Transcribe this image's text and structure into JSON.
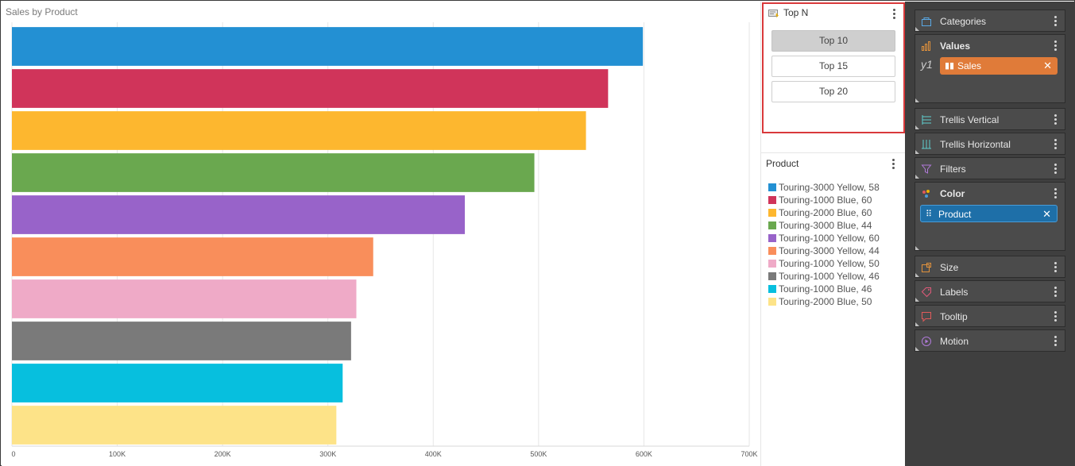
{
  "chart": {
    "title": "Sales by Product"
  },
  "chart_data": {
    "type": "bar",
    "orientation": "horizontal",
    "title": "Sales by Product",
    "xlabel": "",
    "ylabel": "",
    "xlim": [
      0,
      700000
    ],
    "x_ticks": [
      "0",
      "100K",
      "200K",
      "300K",
      "400K",
      "500K",
      "600K",
      "700K"
    ],
    "grid": true,
    "categories": [
      "Touring-3000 Yellow, 58",
      "Touring-1000 Blue, 60",
      "Touring-2000 Blue, 60",
      "Touring-3000 Blue, 44",
      "Touring-1000 Yellow, 60",
      "Touring-3000 Yellow, 44",
      "Touring-1000 Yellow, 50",
      "Touring-1000 Yellow, 46",
      "Touring-1000 Blue, 46",
      "Touring-2000 Blue, 50"
    ],
    "values": [
      599000,
      566000,
      545000,
      496000,
      430000,
      343000,
      327000,
      322000,
      314000,
      308000
    ],
    "colors": [
      "#2390d3",
      "#d0345a",
      "#fdb72f",
      "#6aa84f",
      "#9863c9",
      "#f98e5b",
      "#efaac7",
      "#7a7a7a",
      "#07bfde",
      "#fde388"
    ]
  },
  "topn": {
    "title": "Top N",
    "options": [
      "Top 10",
      "Top 15",
      "Top 20"
    ],
    "selected": "Top 10"
  },
  "legend": {
    "title": "Product",
    "items": [
      {
        "label": "Touring-3000 Yellow, 58",
        "color": "#2390d3"
      },
      {
        "label": "Touring-1000 Blue, 60",
        "color": "#d0345a"
      },
      {
        "label": "Touring-2000 Blue, 60",
        "color": "#fdb72f"
      },
      {
        "label": "Touring-3000 Blue, 44",
        "color": "#6aa84f"
      },
      {
        "label": "Touring-1000 Yellow, 60",
        "color": "#9863c9"
      },
      {
        "label": "Touring-3000 Yellow, 44",
        "color": "#f98e5b"
      },
      {
        "label": "Touring-1000 Yellow, 50",
        "color": "#efaac7"
      },
      {
        "label": "Touring-1000 Yellow, 46",
        "color": "#7a7a7a"
      },
      {
        "label": "Touring-1000 Blue, 46",
        "color": "#07bfde"
      },
      {
        "label": "Touring-2000 Blue, 50",
        "color": "#fde388"
      }
    ]
  },
  "fields": {
    "categories": {
      "label": "Categories",
      "icon": "categories-icon"
    },
    "values": {
      "label": "Values",
      "icon": "bar-chart-icon",
      "axis_label": "y1",
      "pill": {
        "label": "Sales",
        "color": "#e07b39"
      }
    },
    "trellis_vertical": {
      "label": "Trellis Vertical",
      "icon": "trellis-vertical-icon"
    },
    "trellis_horizontal": {
      "label": "Trellis Horizontal",
      "icon": "trellis-horizontal-icon"
    },
    "filters": {
      "label": "Filters",
      "icon": "filter-icon"
    },
    "color": {
      "label": "Color",
      "icon": "palette-icon",
      "pill": {
        "label": "Product",
        "color": "#1e6fa8"
      }
    },
    "size": {
      "label": "Size",
      "icon": "size-icon"
    },
    "labels": {
      "label": "Labels",
      "icon": "tag-icon"
    },
    "tooltip": {
      "label": "Tooltip",
      "icon": "tooltip-icon"
    },
    "motion": {
      "label": "Motion",
      "icon": "play-circle-icon"
    }
  }
}
